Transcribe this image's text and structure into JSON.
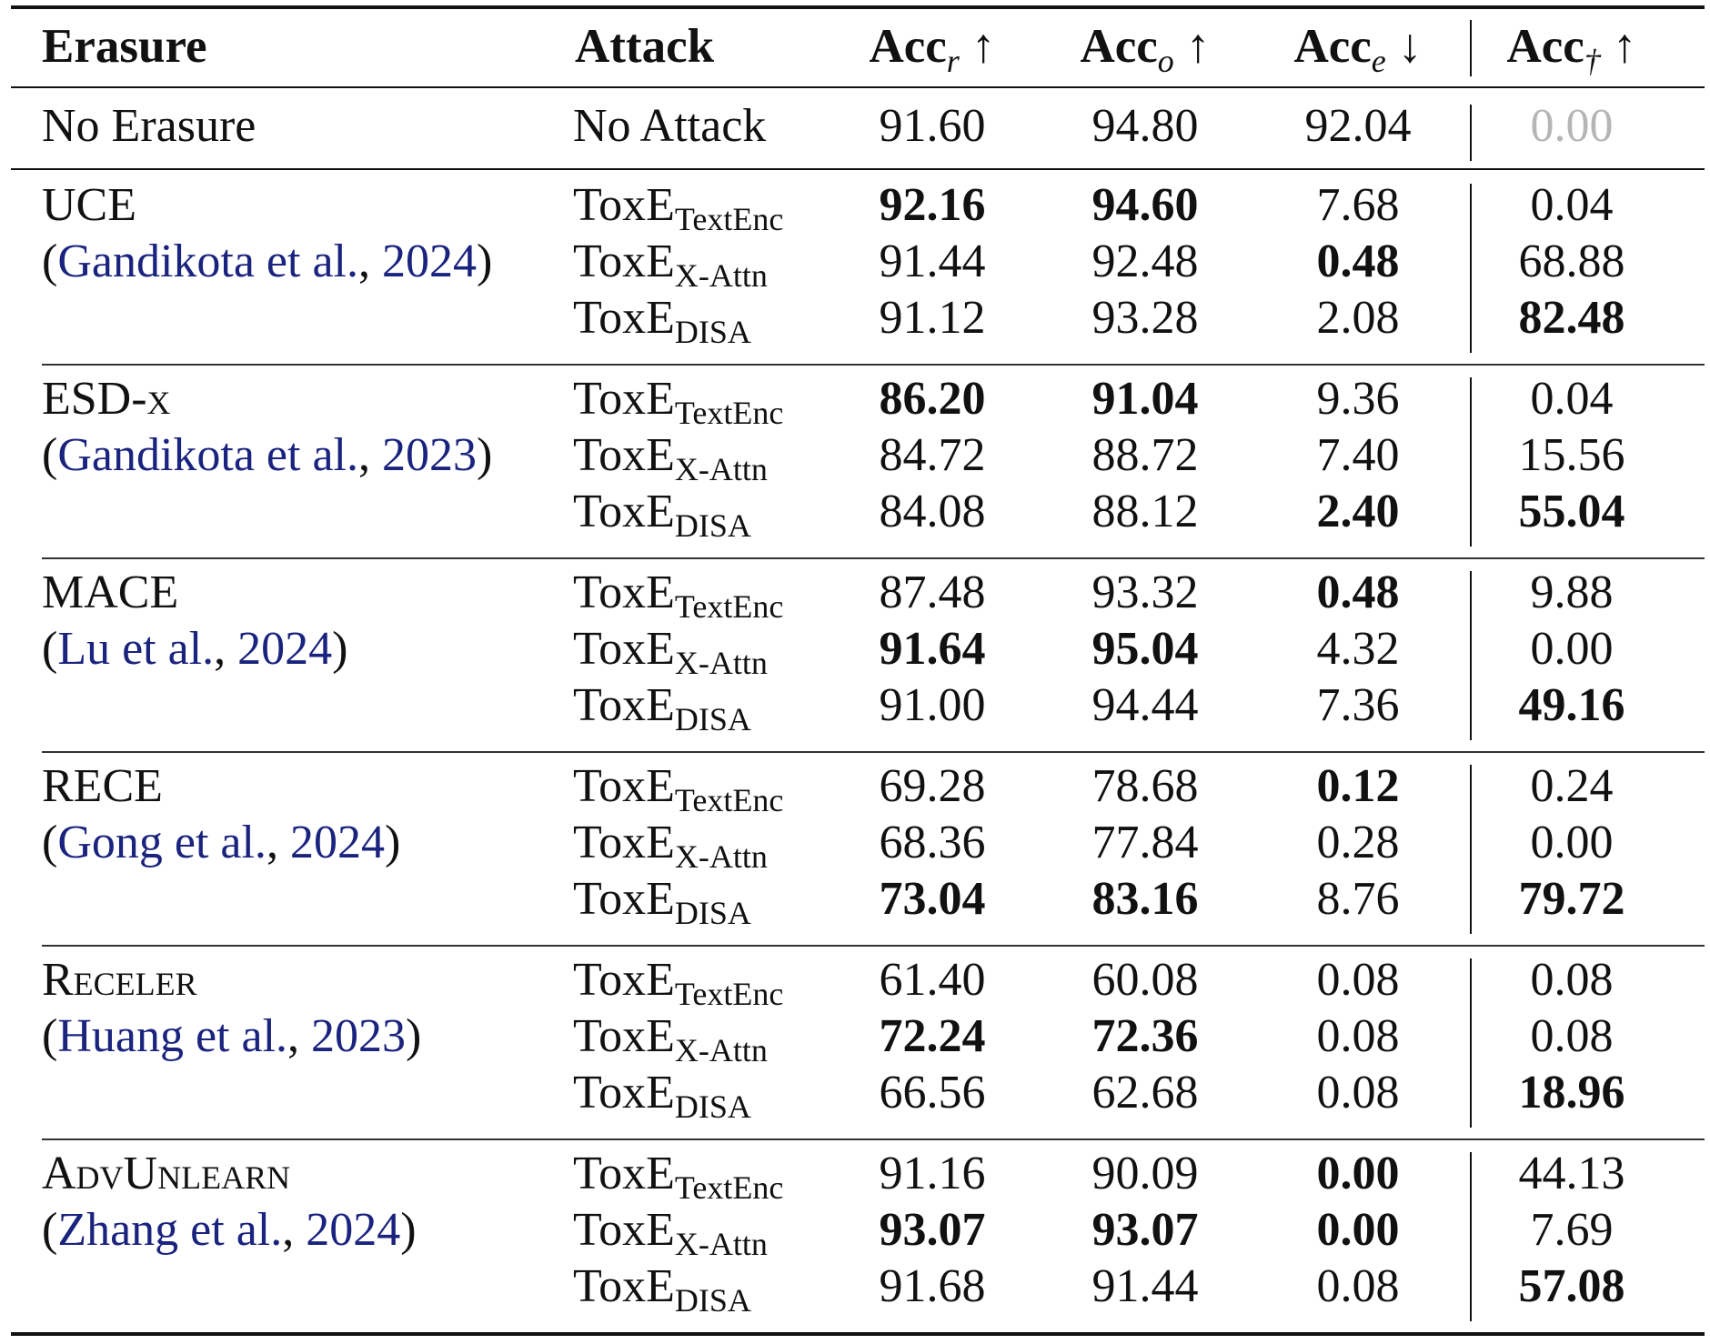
{
  "header": {
    "erasure": "Erasure",
    "attack": "Attack",
    "cols": [
      {
        "base": "Acc",
        "sub": "r",
        "arrow": "↑"
      },
      {
        "base": "Acc",
        "sub": "o",
        "arrow": "↑"
      },
      {
        "base": "Acc",
        "sub": "e",
        "arrow": "↓"
      },
      {
        "base": "Acc",
        "sub": "†",
        "arrow": "↑"
      }
    ]
  },
  "baseline": {
    "erasure": "No Erasure",
    "attack": "No Attack",
    "values": [
      "91.60",
      "94.80",
      "92.04",
      "0.00"
    ]
  },
  "attack_labels": [
    {
      "base": "ToxE",
      "sub": "TextEnc"
    },
    {
      "base": "ToxE",
      "sub": "X-Attn"
    },
    {
      "base": "ToxE",
      "sub": "DISA"
    }
  ],
  "groups": [
    {
      "method": "UCE",
      "cite_author": "Gandikota et al.",
      "cite_year": "2024",
      "rows": [
        {
          "values": [
            "92.16",
            "94.60",
            "7.68",
            "0.04"
          ],
          "bold": [
            true,
            true,
            false,
            false
          ]
        },
        {
          "values": [
            "91.44",
            "92.48",
            "0.48",
            "68.88"
          ],
          "bold": [
            false,
            false,
            true,
            false
          ]
        },
        {
          "values": [
            "91.12",
            "93.28",
            "2.08",
            "82.48"
          ],
          "bold": [
            false,
            false,
            false,
            true
          ]
        }
      ]
    },
    {
      "method": "ESD-x",
      "cite_author": "Gandikota et al.",
      "cite_year": "2023",
      "rows": [
        {
          "values": [
            "86.20",
            "91.04",
            "9.36",
            "0.04"
          ],
          "bold": [
            true,
            true,
            false,
            false
          ]
        },
        {
          "values": [
            "84.72",
            "88.72",
            "7.40",
            "15.56"
          ],
          "bold": [
            false,
            false,
            false,
            false
          ]
        },
        {
          "values": [
            "84.08",
            "88.12",
            "2.40",
            "55.04"
          ],
          "bold": [
            false,
            false,
            true,
            true
          ]
        }
      ]
    },
    {
      "method": "MACE",
      "cite_author": "Lu et al.",
      "cite_year": "2024",
      "rows": [
        {
          "values": [
            "87.48",
            "93.32",
            "0.48",
            "9.88"
          ],
          "bold": [
            false,
            false,
            true,
            false
          ]
        },
        {
          "values": [
            "91.64",
            "95.04",
            "4.32",
            "0.00"
          ],
          "bold": [
            true,
            true,
            false,
            false
          ]
        },
        {
          "values": [
            "91.00",
            "94.44",
            "7.36",
            "49.16"
          ],
          "bold": [
            false,
            false,
            false,
            true
          ]
        }
      ]
    },
    {
      "method": "RECE",
      "cite_author": "Gong et al.",
      "cite_year": "2024",
      "rows": [
        {
          "values": [
            "69.28",
            "78.68",
            "0.12",
            "0.24"
          ],
          "bold": [
            false,
            false,
            true,
            false
          ]
        },
        {
          "values": [
            "68.36",
            "77.84",
            "0.28",
            "0.00"
          ],
          "bold": [
            false,
            false,
            false,
            false
          ]
        },
        {
          "values": [
            "73.04",
            "83.16",
            "8.76",
            "79.72"
          ],
          "bold": [
            true,
            true,
            false,
            true
          ]
        }
      ]
    },
    {
      "method": "Receler",
      "cite_author": "Huang et al.",
      "cite_year": "2023",
      "rows": [
        {
          "values": [
            "61.40",
            "60.08",
            "0.08",
            "0.08"
          ],
          "bold": [
            false,
            false,
            false,
            false
          ]
        },
        {
          "values": [
            "72.24",
            "72.36",
            "0.08",
            "0.08"
          ],
          "bold": [
            true,
            true,
            false,
            false
          ]
        },
        {
          "values": [
            "66.56",
            "62.68",
            "0.08",
            "18.96"
          ],
          "bold": [
            false,
            false,
            false,
            true
          ]
        }
      ]
    },
    {
      "method": "AdvUnlearn",
      "cite_author": "Zhang et al.",
      "cite_year": "2024",
      "rows": [
        {
          "values": [
            "91.16",
            "90.09",
            "0.00",
            "44.13"
          ],
          "bold": [
            false,
            false,
            true,
            false
          ]
        },
        {
          "values": [
            "93.07",
            "93.07",
            "0.00",
            "7.69"
          ],
          "bold": [
            true,
            true,
            true,
            false
          ]
        },
        {
          "values": [
            "91.68",
            "91.44",
            "0.08",
            "57.08"
          ],
          "bold": [
            false,
            false,
            false,
            true
          ]
        }
      ]
    }
  ]
}
